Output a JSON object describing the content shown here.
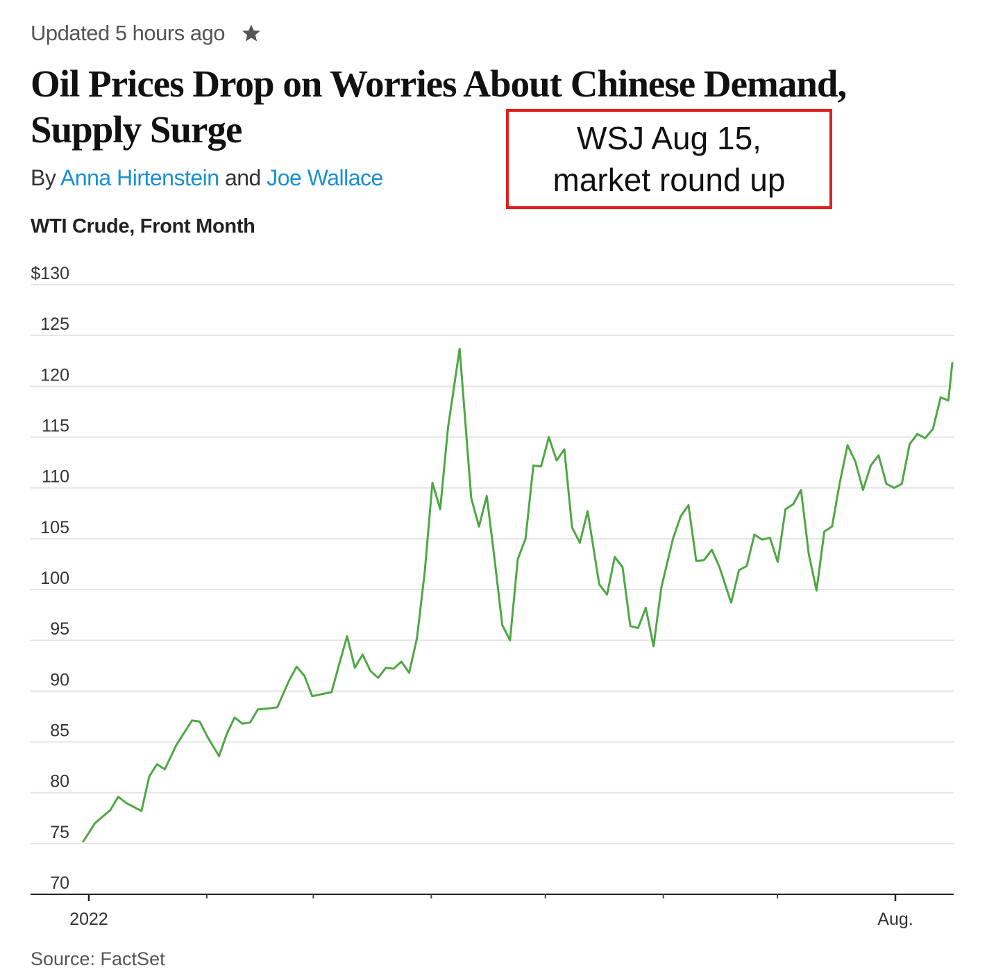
{
  "article": {
    "updated": "Updated 5 hours ago",
    "headline": "Oil Prices Drop on Worries About Chinese Demand, Supply Surge",
    "byline_prefix": "By",
    "byline_join": "and",
    "authors": [
      "Anna Hirtenstein",
      "Joe Wallace"
    ]
  },
  "annotation": {
    "line1": "WSJ Aug 15,",
    "line2": "market round up"
  },
  "chart_data": {
    "type": "line",
    "title": "WTI Crude, Front Month",
    "source": "Source: FactSet",
    "y_ticks": [
      "$130",
      "125",
      "120",
      "115",
      "110",
      "105",
      "100",
      "95",
      "90",
      "85",
      "80",
      "75",
      "70"
    ],
    "ylim": [
      70,
      130
    ],
    "x_labels": [
      {
        "label": "2022",
        "date": "2022-01-01"
      },
      {
        "label": "Aug.",
        "date": "2022-08-01"
      }
    ],
    "x_minor_ticks": [
      "2022-02-01",
      "2022-03-01",
      "2022-04-01",
      "2022-05-01",
      "2022-06-01",
      "2022-07-01"
    ],
    "xlim": [
      "2022-01-01",
      "2022-08-15"
    ],
    "grid": true,
    "line_color": "#4ea744",
    "series": [
      {
        "values": [
          [
            "2022-01-03",
            75.2
          ],
          [
            "2022-01-06",
            77.0
          ],
          [
            "2022-01-10",
            78.3
          ],
          [
            "2022-01-12",
            79.6
          ],
          [
            "2022-01-14",
            79.0
          ],
          [
            "2022-01-18",
            78.2
          ],
          [
            "2022-01-20",
            81.6
          ],
          [
            "2022-01-22",
            82.8
          ],
          [
            "2022-01-24",
            82.3
          ],
          [
            "2022-01-27",
            84.7
          ],
          [
            "2022-01-31",
            87.1
          ],
          [
            "2022-02-02",
            87.0
          ],
          [
            "2022-02-04",
            85.5
          ],
          [
            "2022-02-07",
            83.6
          ],
          [
            "2022-02-09",
            85.8
          ],
          [
            "2022-02-11",
            87.4
          ],
          [
            "2022-02-13",
            86.8
          ],
          [
            "2022-02-15",
            86.9
          ],
          [
            "2022-02-17",
            88.2
          ],
          [
            "2022-02-20",
            88.3
          ],
          [
            "2022-02-22",
            88.4
          ],
          [
            "2022-02-25",
            91.0
          ],
          [
            "2022-02-27",
            92.4
          ],
          [
            "2022-03-01",
            91.5
          ],
          [
            "2022-03-03",
            89.5
          ],
          [
            "2022-03-08",
            89.9
          ],
          [
            "2022-03-10",
            92.7
          ],
          [
            "2022-03-12",
            95.4
          ],
          [
            "2022-03-14",
            92.3
          ],
          [
            "2022-03-16",
            93.6
          ],
          [
            "2022-03-18",
            92.0
          ],
          [
            "2022-03-20",
            91.3
          ],
          [
            "2022-03-22",
            92.3
          ],
          [
            "2022-03-24",
            92.2
          ],
          [
            "2022-03-26",
            92.9
          ],
          [
            "2022-03-28",
            91.8
          ],
          [
            "2022-03-30",
            95.2
          ],
          [
            "2022-04-01",
            101.7
          ],
          [
            "2022-04-03",
            110.5
          ],
          [
            "2022-04-05",
            107.9
          ],
          [
            "2022-04-07",
            115.9
          ],
          [
            "2022-04-10",
            123.7
          ],
          [
            "2022-04-13",
            109.0
          ],
          [
            "2022-04-15",
            106.2
          ],
          [
            "2022-04-17",
            109.2
          ],
          [
            "2022-04-19",
            103.0
          ],
          [
            "2022-04-21",
            96.5
          ],
          [
            "2022-04-23",
            95.0
          ],
          [
            "2022-04-25",
            103.0
          ],
          [
            "2022-04-27",
            105.0
          ],
          [
            "2022-04-29",
            112.2
          ],
          [
            "2022-05-01",
            112.1
          ],
          [
            "2022-05-03",
            115.0
          ],
          [
            "2022-05-05",
            112.7
          ],
          [
            "2022-05-07",
            113.8
          ],
          [
            "2022-05-09",
            106.1
          ],
          [
            "2022-05-11",
            104.6
          ],
          [
            "2022-05-13",
            107.7
          ],
          [
            "2022-05-16",
            100.5
          ],
          [
            "2022-05-18",
            99.5
          ],
          [
            "2022-05-20",
            103.2
          ],
          [
            "2022-05-22",
            102.2
          ],
          [
            "2022-05-24",
            96.4
          ],
          [
            "2022-05-26",
            96.2
          ],
          [
            "2022-05-28",
            98.2
          ],
          [
            "2022-05-30",
            94.4
          ],
          [
            "2022-06-01",
            100.2
          ],
          [
            "2022-06-04",
            105.0
          ],
          [
            "2022-06-06",
            107.2
          ],
          [
            "2022-06-08",
            108.3
          ],
          [
            "2022-06-10",
            102.8
          ],
          [
            "2022-06-12",
            102.9
          ],
          [
            "2022-06-14",
            103.9
          ],
          [
            "2022-06-16",
            102.2
          ],
          [
            "2022-06-19",
            98.7
          ],
          [
            "2022-06-21",
            101.9
          ],
          [
            "2022-06-23",
            102.3
          ],
          [
            "2022-06-25",
            105.4
          ],
          [
            "2022-06-27",
            104.9
          ],
          [
            "2022-06-29",
            105.1
          ],
          [
            "2022-07-01",
            102.7
          ],
          [
            "2022-07-03",
            107.9
          ],
          [
            "2022-07-05",
            108.4
          ],
          [
            "2022-07-07",
            109.8
          ],
          [
            "2022-07-09",
            103.5
          ],
          [
            "2022-07-11",
            99.9
          ],
          [
            "2022-07-13",
            105.7
          ],
          [
            "2022-07-15",
            106.2
          ],
          [
            "2022-07-17",
            110.5
          ],
          [
            "2022-07-19",
            114.2
          ],
          [
            "2022-07-21",
            112.6
          ],
          [
            "2022-07-23",
            109.8
          ],
          [
            "2022-07-25",
            112.2
          ],
          [
            "2022-07-27",
            113.2
          ],
          [
            "2022-07-29",
            110.4
          ],
          [
            "2022-07-31",
            110.0
          ],
          [
            "2022-08-02",
            110.4
          ],
          [
            "2022-08-04",
            114.3
          ],
          [
            "2022-08-06",
            115.3
          ],
          [
            "2022-08-08",
            114.9
          ],
          [
            "2022-08-10",
            115.8
          ],
          [
            "2022-08-12",
            118.9
          ],
          [
            "2022-08-14",
            118.6
          ],
          [
            "2022-08-15",
            122.3
          ]
        ]
      }
    ]
  }
}
